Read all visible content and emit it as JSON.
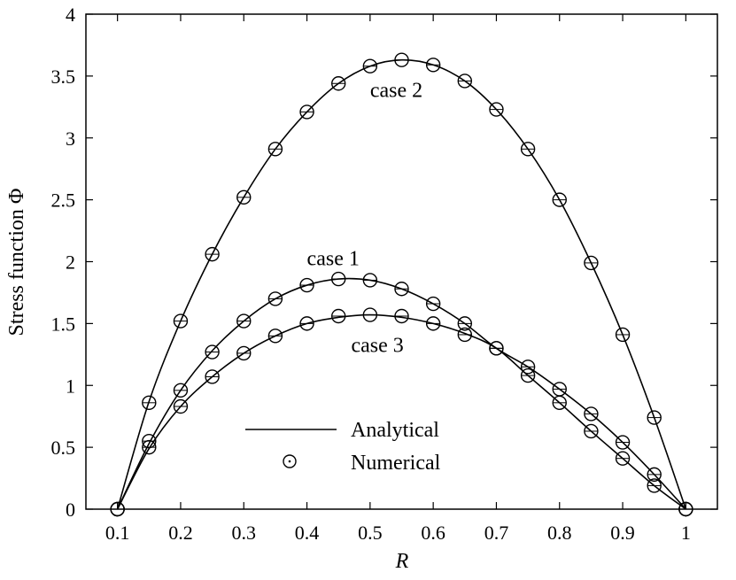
{
  "chart_data": {
    "type": "line",
    "xlabel": "R",
    "ylabel": "Stress function Φ",
    "xlim": [
      0.05,
      1.05
    ],
    "ylim": [
      0,
      4
    ],
    "xticks": [
      0.1,
      0.2,
      0.3,
      0.4,
      0.5,
      0.6,
      0.7,
      0.8,
      0.9,
      1
    ],
    "xtick_labels": [
      "0.1",
      "0.2",
      "0.3",
      "0.4",
      "0.5",
      "0.6",
      "0.7",
      "0.8",
      "0.9",
      "1"
    ],
    "yticks": [
      0,
      0.5,
      1,
      1.5,
      2,
      2.5,
      3,
      3.5,
      4
    ],
    "ytick_labels": [
      "0",
      "0.5",
      "1",
      "1.5",
      "2",
      "2.5",
      "3",
      "3.5",
      "4"
    ],
    "legend": {
      "position": "lower-left",
      "entries": [
        {
          "label": "Analytical",
          "style": "line"
        },
        {
          "label": "Numerical",
          "style": "circle-marker"
        }
      ]
    },
    "analytical": [
      {
        "name": "case 1",
        "x": [
          0.1,
          0.15,
          0.2,
          0.25,
          0.3,
          0.35,
          0.4,
          0.45,
          0.5,
          0.55,
          0.6,
          0.65,
          0.7,
          0.75,
          0.8,
          0.85,
          0.9,
          0.95,
          1
        ],
        "y": [
          0,
          0.53,
          0.96,
          1.28,
          1.52,
          1.7,
          1.81,
          1.86,
          1.85,
          1.78,
          1.66,
          1.5,
          1.3,
          1.15,
          0.97,
          0.77,
          0.54,
          0.28,
          0
        ]
      },
      {
        "name": "case 2",
        "x": [
          0.1,
          0.15,
          0.2,
          0.25,
          0.3,
          0.35,
          0.4,
          0.45,
          0.5,
          0.55,
          0.6,
          0.65,
          0.7,
          0.75,
          0.8,
          0.85,
          0.9,
          0.95,
          1
        ],
        "y": [
          0,
          0.87,
          1.52,
          2.06,
          2.52,
          2.91,
          3.21,
          3.44,
          3.58,
          3.63,
          3.59,
          3.46,
          3.23,
          2.91,
          2.5,
          1.99,
          1.41,
          0.74,
          0
        ]
      },
      {
        "name": "case 3",
        "x": [
          0.1,
          0.15,
          0.2,
          0.25,
          0.3,
          0.35,
          0.4,
          0.45,
          0.5,
          0.55,
          0.6,
          0.65,
          0.7,
          0.75,
          0.8,
          0.85,
          0.9,
          0.95,
          1
        ],
        "y": [
          0,
          0.49,
          0.83,
          1.07,
          1.26,
          1.4,
          1.5,
          1.55,
          1.57,
          1.55,
          1.5,
          1.42,
          1.3,
          1.08,
          0.86,
          0.63,
          0.41,
          0.19,
          0
        ]
      }
    ],
    "numerical": [
      {
        "name": "case 1",
        "x": [
          0.1,
          0.15,
          0.2,
          0.25,
          0.3,
          0.35,
          0.4,
          0.45,
          0.5,
          0.55,
          0.6,
          0.65,
          0.7,
          0.75,
          0.8,
          0.85,
          0.9,
          0.95,
          1
        ],
        "y": [
          0,
          0.55,
          0.96,
          1.27,
          1.52,
          1.7,
          1.81,
          1.86,
          1.85,
          1.78,
          1.66,
          1.5,
          1.3,
          1.15,
          0.97,
          0.77,
          0.54,
          0.28,
          0
        ]
      },
      {
        "name": "case 2",
        "x": [
          0.1,
          0.15,
          0.2,
          0.25,
          0.3,
          0.35,
          0.4,
          0.45,
          0.5,
          0.55,
          0.6,
          0.65,
          0.7,
          0.75,
          0.8,
          0.85,
          0.9,
          0.95,
          1
        ],
        "y": [
          0,
          0.86,
          1.52,
          2.06,
          2.52,
          2.91,
          3.21,
          3.44,
          3.58,
          3.63,
          3.59,
          3.46,
          3.23,
          2.91,
          2.5,
          1.99,
          1.41,
          0.74,
          0
        ]
      },
      {
        "name": "case 3",
        "x": [
          0.1,
          0.15,
          0.2,
          0.25,
          0.3,
          0.35,
          0.4,
          0.45,
          0.5,
          0.55,
          0.6,
          0.65,
          0.7,
          0.75,
          0.8,
          0.85,
          0.9,
          0.95,
          1
        ],
        "y": [
          0,
          0.5,
          0.83,
          1.07,
          1.26,
          1.4,
          1.5,
          1.56,
          1.57,
          1.56,
          1.5,
          1.41,
          1.3,
          1.08,
          0.86,
          0.63,
          0.41,
          0.19,
          0
        ]
      }
    ],
    "annotations": [
      {
        "text": "case 2",
        "x": 0.5,
        "y": 3.33
      },
      {
        "text": "case 1",
        "x": 0.4,
        "y": 1.97
      },
      {
        "text": "case 3",
        "x": 0.47,
        "y": 1.27
      }
    ]
  }
}
